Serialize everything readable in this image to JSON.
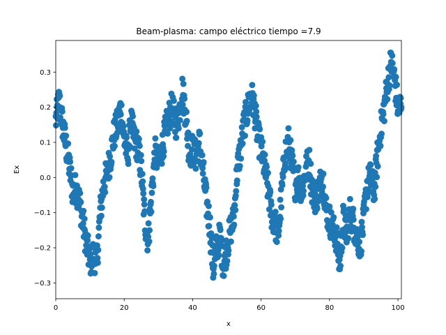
{
  "chart_data": {
    "type": "scatter",
    "title": "Beam-plasma: campo eléctrico  tiempo =7.9",
    "xlabel": "x",
    "ylabel": "Ex",
    "xlim": [
      0,
      101
    ],
    "ylim": [
      -0.345,
      0.39
    ],
    "xticks": [
      0,
      20,
      40,
      60,
      80,
      100
    ],
    "yticks": [
      -0.3,
      -0.2,
      -0.1,
      0.0,
      0.1,
      0.2,
      0.3
    ],
    "xtick_labels": [
      "0",
      "20",
      "40",
      "60",
      "80",
      "100"
    ],
    "ytick_labels": [
      "−0.3",
      "−0.2",
      "−0.1",
      "0.0",
      "0.1",
      "0.2",
      "0.3"
    ],
    "grid": false,
    "marker_color": "#1f77b4",
    "anchors": [
      [
        0,
        0.16
      ],
      [
        1,
        0.22
      ],
      [
        2,
        0.15
      ],
      [
        3,
        0.09
      ],
      [
        4,
        0.03
      ],
      [
        5,
        -0.04
      ],
      [
        6,
        -0.03
      ],
      [
        7,
        -0.07
      ],
      [
        8,
        -0.13
      ],
      [
        9,
        -0.19
      ],
      [
        10,
        -0.24
      ],
      [
        11,
        -0.22
      ],
      [
        12,
        -0.24
      ],
      [
        13,
        -0.1
      ],
      [
        14,
        -0.02
      ],
      [
        15,
        0.01
      ],
      [
        16,
        0.06
      ],
      [
        17,
        0.12
      ],
      [
        18,
        0.15
      ],
      [
        19,
        0.2
      ],
      [
        20,
        0.11
      ],
      [
        21,
        0.06
      ],
      [
        22,
        0.16
      ],
      [
        23,
        0.1
      ],
      [
        24,
        0.09
      ],
      [
        25,
        0.02
      ],
      [
        26,
        -0.12
      ],
      [
        27,
        -0.18
      ],
      [
        28,
        -0.05
      ],
      [
        29,
        0.07
      ],
      [
        30,
        0.04
      ],
      [
        31,
        0.08
      ],
      [
        32,
        0.13
      ],
      [
        33,
        0.17
      ],
      [
        34,
        0.2
      ],
      [
        35,
        0.15
      ],
      [
        36,
        0.18
      ],
      [
        37,
        0.25
      ],
      [
        38,
        0.18
      ],
      [
        39,
        0.07
      ],
      [
        40,
        0.08
      ],
      [
        41,
        0.06
      ],
      [
        42,
        0.1
      ],
      [
        43,
        0.02
      ],
      [
        44,
        -0.07
      ],
      [
        45,
        -0.13
      ],
      [
        46,
        -0.26
      ],
      [
        47,
        -0.2
      ],
      [
        48,
        -0.17
      ],
      [
        49,
        -0.25
      ],
      [
        50,
        -0.2
      ],
      [
        51,
        -0.15
      ],
      [
        52,
        -0.12
      ],
      [
        53,
        0.02
      ],
      [
        54,
        0.08
      ],
      [
        55,
        0.15
      ],
      [
        56,
        0.19
      ],
      [
        57,
        0.24
      ],
      [
        58,
        0.2
      ],
      [
        59,
        0.12
      ],
      [
        60,
        0.08
      ],
      [
        61,
        0.03
      ],
      [
        62,
        -0.03
      ],
      [
        63,
        -0.1
      ],
      [
        64,
        -0.13
      ],
      [
        65,
        -0.16
      ],
      [
        66,
        -0.05
      ],
      [
        67,
        0.07
      ],
      [
        68,
        0.1
      ],
      [
        69,
        0.04
      ],
      [
        70,
        -0.02
      ],
      [
        71,
        0.0
      ],
      [
        72,
        -0.04
      ],
      [
        73,
        0.02
      ],
      [
        74,
        0.05
      ],
      [
        75,
        -0.04
      ],
      [
        76,
        -0.06
      ],
      [
        77,
        -0.03
      ],
      [
        78,
        0.01
      ],
      [
        79,
        -0.09
      ],
      [
        80,
        -0.12
      ],
      [
        81,
        -0.15
      ],
      [
        82,
        -0.17
      ],
      [
        83,
        -0.25
      ],
      [
        84,
        -0.12
      ],
      [
        85,
        -0.16
      ],
      [
        86,
        -0.1
      ],
      [
        87,
        -0.13
      ],
      [
        88,
        -0.17
      ],
      [
        89,
        -0.19
      ],
      [
        90,
        -0.12
      ],
      [
        91,
        -0.02
      ],
      [
        92,
        0.0
      ],
      [
        93,
        -0.04
      ],
      [
        94,
        0.06
      ],
      [
        95,
        0.14
      ],
      [
        96,
        0.2
      ],
      [
        97,
        0.27
      ],
      [
        98,
        0.33
      ],
      [
        99,
        0.28
      ],
      [
        100,
        0.2
      ],
      [
        101,
        0.2
      ]
    ],
    "n_points_per_unit": 10
  }
}
